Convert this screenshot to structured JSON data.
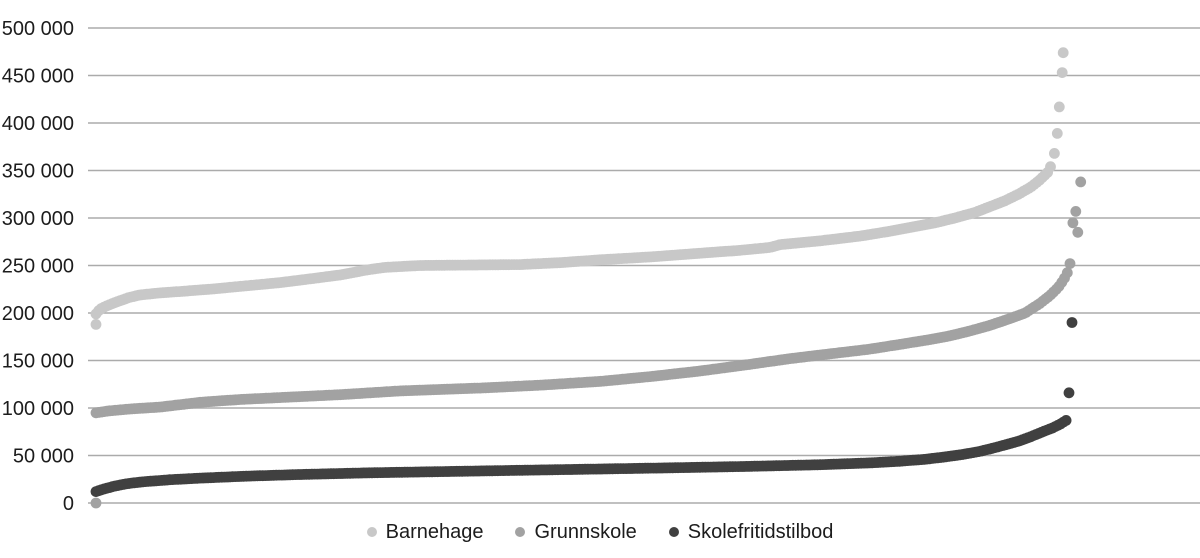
{
  "chart_data": {
    "type": "scatter",
    "title": "",
    "xlabel": "",
    "ylabel": "",
    "ylim": [
      0,
      500000
    ],
    "grid": true,
    "legend_position": "bottom-center",
    "colors": {
      "background": "#ffffff",
      "gridline": "#ababab",
      "tick_label": "#1c1c1c",
      "legend_text": "#1c1c1c"
    },
    "point_radius": 5.4,
    "n_points_per_series": 356,
    "yticks": [
      {
        "value": 0,
        "label": "0"
      },
      {
        "value": 50000,
        "label": "50 000"
      },
      {
        "value": 100000,
        "label": "100 000"
      },
      {
        "value": 150000,
        "label": "150 000"
      },
      {
        "value": 200000,
        "label": "200 000"
      },
      {
        "value": 250000,
        "label": "250 000"
      },
      {
        "value": 300000,
        "label": "300 000"
      },
      {
        "value": 350000,
        "label": "350 000"
      },
      {
        "value": 400000,
        "label": "400 000"
      },
      {
        "value": 450000,
        "label": "450 000"
      },
      {
        "value": 500000,
        "label": "500 000"
      }
    ],
    "series": [
      {
        "name": "Barnehage",
        "color": "#c8c8c8",
        "profile": [
          [
            0.001,
            199000
          ],
          [
            0.005,
            204000
          ],
          [
            0.011,
            207000
          ],
          [
            0.018,
            210000
          ],
          [
            0.026,
            213000
          ],
          [
            0.034,
            216000
          ],
          [
            0.046,
            219000
          ],
          [
            0.065,
            221000
          ],
          [
            0.092,
            223000
          ],
          [
            0.123,
            225500
          ],
          [
            0.159,
            229000
          ],
          [
            0.19,
            232000
          ],
          [
            0.221,
            236000
          ],
          [
            0.251,
            240000
          ],
          [
            0.277,
            245000
          ],
          [
            0.297,
            248000
          ],
          [
            0.333,
            250000
          ],
          [
            0.385,
            250500
          ],
          [
            0.436,
            251000
          ],
          [
            0.477,
            253000
          ],
          [
            0.518,
            256000
          ],
          [
            0.569,
            259000
          ],
          [
            0.621,
            263000
          ],
          [
            0.662,
            266000
          ],
          [
            0.692,
            269000
          ],
          [
            0.703,
            272000
          ],
          [
            0.744,
            276000
          ],
          [
            0.785,
            281000
          ],
          [
            0.815,
            286000
          ],
          [
            0.841,
            291000
          ],
          [
            0.862,
            295000
          ],
          [
            0.882,
            300000
          ],
          [
            0.903,
            306000
          ],
          [
            0.918,
            312000
          ],
          [
            0.933,
            318000
          ],
          [
            0.947,
            325000
          ],
          [
            0.959,
            332000
          ],
          [
            0.969,
            340000
          ],
          [
            0.977,
            348000
          ]
        ],
        "outliers": [
          [
            0.001,
            188000
          ],
          [
            0.98,
            354000
          ],
          [
            0.984,
            368000
          ],
          [
            0.987,
            389000
          ],
          [
            0.989,
            417000
          ],
          [
            0.992,
            453000
          ],
          [
            0.993,
            474000
          ]
        ]
      },
      {
        "name": "Grunnskole",
        "color": "#a2a2a2",
        "profile": [
          [
            0.001,
            95000
          ],
          [
            0.015,
            97000
          ],
          [
            0.036,
            99000
          ],
          [
            0.067,
            101000
          ],
          [
            0.108,
            106000
          ],
          [
            0.149,
            109000
          ],
          [
            0.19,
            111000
          ],
          [
            0.251,
            114000
          ],
          [
            0.313,
            118000
          ],
          [
            0.395,
            121000
          ],
          [
            0.456,
            124000
          ],
          [
            0.518,
            128000
          ],
          [
            0.569,
            133000
          ],
          [
            0.621,
            139000
          ],
          [
            0.672,
            146000
          ],
          [
            0.713,
            152000
          ],
          [
            0.754,
            157000
          ],
          [
            0.795,
            162000
          ],
          [
            0.826,
            167000
          ],
          [
            0.856,
            172000
          ],
          [
            0.877,
            176000
          ],
          [
            0.897,
            181000
          ],
          [
            0.918,
            187000
          ],
          [
            0.938,
            194000
          ],
          [
            0.954,
            200000
          ],
          [
            0.969,
            210000
          ],
          [
            0.979,
            218000
          ],
          [
            0.988,
            227000
          ],
          [
            0.994,
            236000
          ],
          [
            0.998,
            244000
          ],
          [
            1.0,
            252000
          ]
        ],
        "outliers": [
          [
            0.001,
            0
          ],
          [
            1.003,
            295000
          ],
          [
            1.006,
            307000
          ],
          [
            1.008,
            285000
          ],
          [
            1.011,
            338000
          ]
        ]
      },
      {
        "name": "Skolefritidstilbod",
        "color": "#404040",
        "profile": [
          [
            0.001,
            12000
          ],
          [
            0.01,
            15000
          ],
          [
            0.021,
            18000
          ],
          [
            0.034,
            20500
          ],
          [
            0.051,
            22500
          ],
          [
            0.077,
            24500
          ],
          [
            0.108,
            26200
          ],
          [
            0.154,
            28200
          ],
          [
            0.21,
            30000
          ],
          [
            0.282,
            31800
          ],
          [
            0.364,
            33200
          ],
          [
            0.446,
            34600
          ],
          [
            0.518,
            35800
          ],
          [
            0.6,
            37200
          ],
          [
            0.672,
            38600
          ],
          [
            0.744,
            40300
          ],
          [
            0.795,
            42200
          ],
          [
            0.826,
            44000
          ],
          [
            0.851,
            46000
          ],
          [
            0.872,
            48500
          ],
          [
            0.889,
            51000
          ],
          [
            0.906,
            54000
          ],
          [
            0.92,
            57500
          ],
          [
            0.933,
            61000
          ],
          [
            0.947,
            65000
          ],
          [
            0.959,
            69500
          ],
          [
            0.971,
            74500
          ],
          [
            0.982,
            79000
          ],
          [
            0.99,
            83000
          ],
          [
            0.996,
            87000
          ]
        ],
        "outliers": [
          [
            0.999,
            116000
          ],
          [
            1.002,
            190000
          ]
        ]
      }
    ]
  }
}
